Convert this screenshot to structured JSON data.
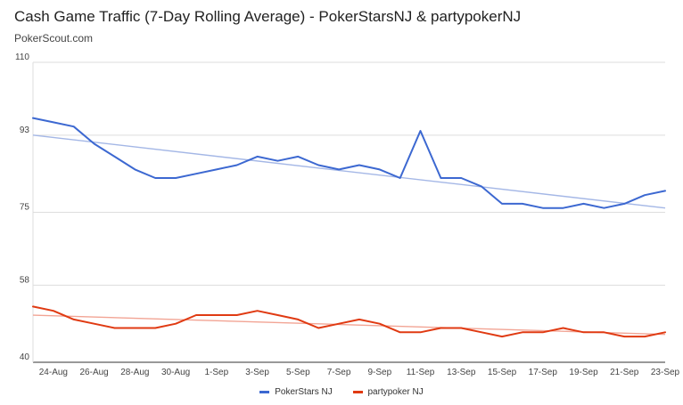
{
  "header": {
    "title": "Cash Game Traffic (7-Day Rolling Average) - PokerStarsNJ & partypokerNJ",
    "subtitle": "PokerScout.com"
  },
  "colors": {
    "pokerstars": "#3c68d1",
    "partypoker": "#e03a12",
    "pokerstars_trend": "#a4b7e6",
    "partypoker_trend": "#f2a494",
    "grid": "#dddddd",
    "baseline": "#333333"
  },
  "chart_data": {
    "type": "line",
    "title": "Cash Game Traffic (7-Day Rolling Average) - PokerStarsNJ & partypokerNJ",
    "x_tick_labels": [
      "24-Aug",
      "26-Aug",
      "28-Aug",
      "30-Aug",
      "1-Sep",
      "3-Sep",
      "5-Sep",
      "7-Sep",
      "9-Sep",
      "11-Sep",
      "13-Sep",
      "15-Sep",
      "17-Sep",
      "19-Sep",
      "21-Sep",
      "23-Sep"
    ],
    "x": [
      "23-Aug",
      "24-Aug",
      "25-Aug",
      "26-Aug",
      "27-Aug",
      "28-Aug",
      "29-Aug",
      "30-Aug",
      "31-Aug",
      "1-Sep",
      "2-Sep",
      "3-Sep",
      "4-Sep",
      "5-Sep",
      "6-Sep",
      "7-Sep",
      "8-Sep",
      "9-Sep",
      "10-Sep",
      "11-Sep",
      "12-Sep",
      "13-Sep",
      "14-Sep",
      "15-Sep",
      "16-Sep",
      "17-Sep",
      "18-Sep",
      "19-Sep",
      "20-Sep",
      "21-Sep",
      "22-Sep",
      "23-Sep"
    ],
    "series": [
      {
        "name": "PokerStars NJ",
        "values": [
          97,
          96,
          95,
          91,
          88,
          85,
          83,
          83,
          84,
          85,
          86,
          88,
          87,
          88,
          86,
          85,
          86,
          85,
          83,
          94,
          83,
          83,
          81,
          77,
          77,
          76,
          76,
          77,
          76,
          77,
          79,
          80
        ]
      },
      {
        "name": "partypoker NJ",
        "values": [
          53,
          52,
          50,
          49,
          48,
          48,
          48,
          49,
          51,
          51,
          51,
          52,
          51,
          50,
          48,
          49,
          50,
          49,
          47,
          47,
          48,
          48,
          47,
          46,
          47,
          47,
          48,
          47,
          47,
          46,
          46,
          47
        ]
      }
    ],
    "trendlines": [
      {
        "series": "PokerStars NJ",
        "start": 93,
        "end": 76
      },
      {
        "series": "partypoker NJ",
        "start": 51,
        "end": 46.5
      }
    ],
    "y_ticks": [
      40,
      58,
      75,
      93,
      110
    ],
    "ylim": [
      40,
      110
    ],
    "grid": true,
    "legend_position": "bottom"
  }
}
